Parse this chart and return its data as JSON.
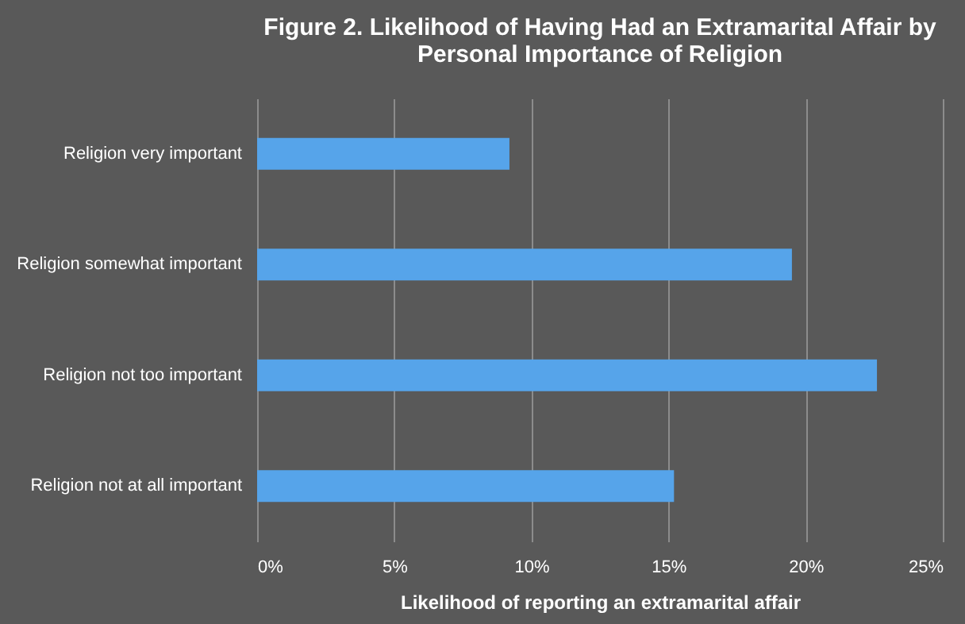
{
  "chart_data": {
    "type": "bar",
    "orientation": "horizontal",
    "title": [
      "Figure 2.  Likelihood of Having Had an Extramarital Affair by",
      "Personal Importance of Religion"
    ],
    "categories": [
      "Religion very important",
      "Religion somewhat important",
      "Religion not too important",
      "Religion not at all important"
    ],
    "values": [
      9.2,
      19.5,
      22.6,
      15.2
    ],
    "color": "#56a4ea",
    "xlabel": "Likelihood of reporting an extramarital affair",
    "xlim": [
      0,
      25
    ],
    "xticks": [
      {
        "value": 0,
        "label": "0%"
      },
      {
        "value": 5,
        "label": "5%"
      },
      {
        "value": 10,
        "label": "10%"
      },
      {
        "value": 15,
        "label": "15%"
      },
      {
        "value": 20,
        "label": "20%"
      },
      {
        "value": 25,
        "label": "25%"
      }
    ],
    "grid": "x"
  }
}
